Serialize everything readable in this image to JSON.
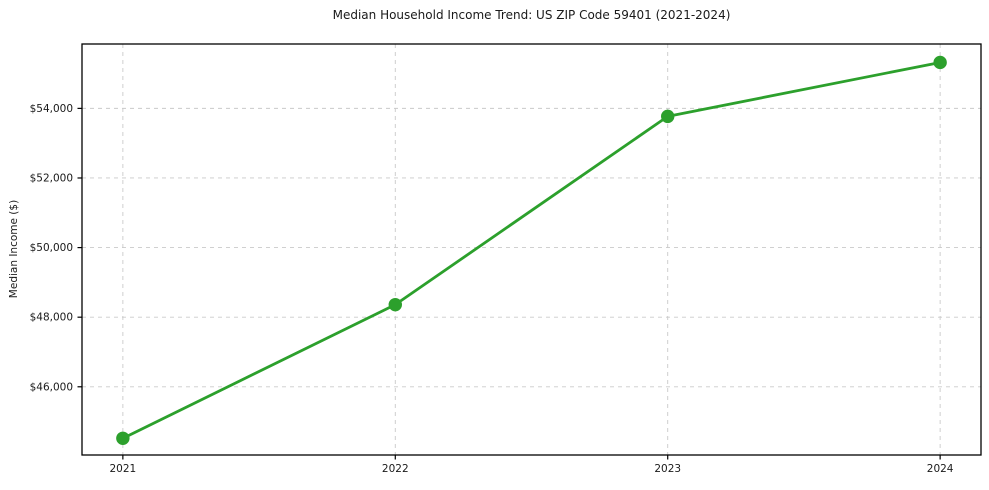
{
  "chart_data": {
    "type": "line",
    "title": "Median Household Income Trend: US ZIP Code 59401 (2021-2024)",
    "xlabel": "",
    "ylabel": "Median Income ($)",
    "categories": [
      "2021",
      "2022",
      "2023",
      "2024"
    ],
    "series": [
      {
        "name": "Median Household Income",
        "values": [
          44520,
          48360,
          53770,
          55320
        ],
        "color": "#2ca02c",
        "marker": "circle",
        "line_width": 2.8,
        "marker_radius": 6.7
      }
    ],
    "yticks": {
      "values": [
        46000,
        48000,
        50000,
        52000,
        54000
      ],
      "labels": [
        "$46,000",
        "$48,000",
        "$50,000",
        "$52,000",
        "$54,000"
      ]
    },
    "ylim": [
      44040,
      55850
    ],
    "xlim_index": [
      -0.15,
      3.15
    ],
    "grid": {
      "visible": true,
      "style": "dashed",
      "color": "#c9c9c9"
    },
    "axis_color": "#000000",
    "background": "#ffffff",
    "legend_position": "none"
  }
}
